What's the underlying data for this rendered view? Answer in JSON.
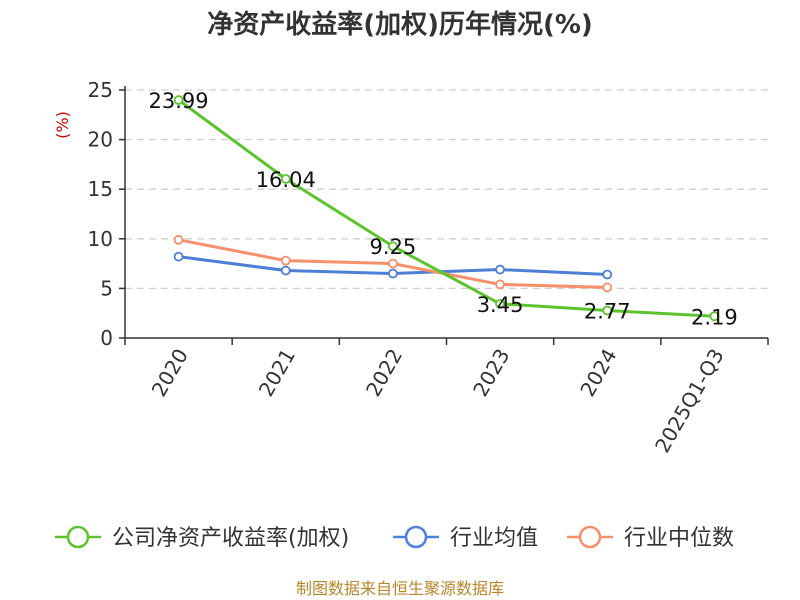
{
  "chart_data": {
    "type": "line",
    "title": "净资产收益率(加权)历年情况(%)",
    "ylabel": "(%)",
    "xlabel": "",
    "categories": [
      "2020",
      "2021",
      "2022",
      "2023",
      "2024",
      "2025Q1-Q3"
    ],
    "ylim": [
      0,
      25
    ],
    "yticks": [
      0,
      5,
      10,
      15,
      20,
      25
    ],
    "grid": true,
    "legend_position": "bottom",
    "series": [
      {
        "name": "公司净资产收益率(加权)",
        "color": "#5cc32d",
        "values": [
          23.99,
          16.04,
          9.25,
          3.45,
          2.77,
          2.19
        ],
        "labels": [
          "23.99",
          "16.04",
          "9.25",
          "3.45",
          "2.77",
          "2.19"
        ]
      },
      {
        "name": "行业均值",
        "color": "#4d7fd6",
        "values": [
          8.2,
          6.8,
          6.5,
          6.9,
          6.4,
          null
        ]
      },
      {
        "name": "行业中位数",
        "color": "#f5906a",
        "values": [
          9.9,
          7.8,
          7.5,
          5.4,
          5.1,
          null
        ]
      }
    ],
    "source": "制图数据来自恒生聚源数据库"
  }
}
